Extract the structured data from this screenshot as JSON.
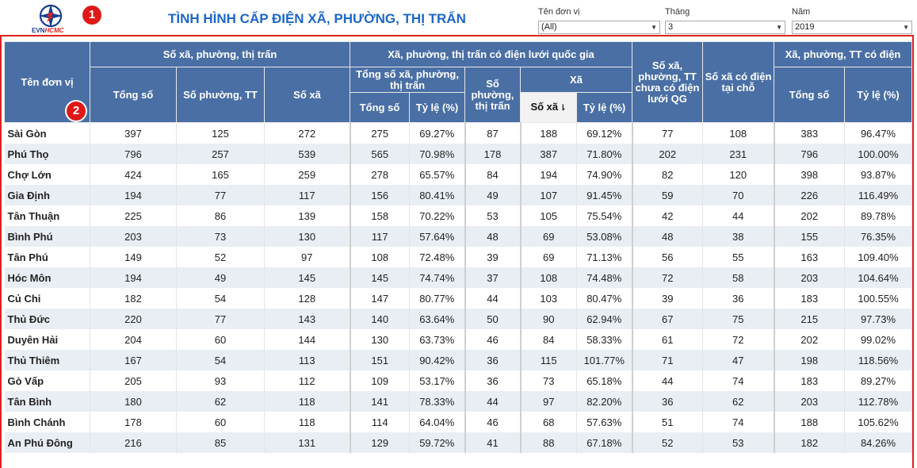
{
  "header": {
    "logo_text_evn": "EVN",
    "logo_text_hcmc": "HCMC",
    "title": "TÌNH HÌNH CẤP ĐIỆN XÃ, PHƯỜNG, THỊ TRẤN",
    "badge1": "1",
    "badge2": "2"
  },
  "filters": [
    {
      "label": "Tên đơn vị",
      "value": "(All)"
    },
    {
      "label": "Tháng",
      "value": "3"
    },
    {
      "label": "Năm",
      "value": "2019"
    }
  ],
  "table": {
    "headers": {
      "unit": "Tên đơn vị",
      "group1": "Số xã, phường, thị trấn",
      "g1_total": "Tổng số",
      "g1_wards": "Số phường, TT",
      "g1_communes": "Số xã",
      "group2": "Xã, phường, thị trấn có điện lưới quốc gia",
      "g2_total_group": "Tổng số xã, phường, thị trấn",
      "g2_total": "Tổng số",
      "g2_rate": "Tỷ lệ (%)",
      "g2_wards": "Số phường, thị trấn",
      "g2_xa": "Xã",
      "g2_xa_count": "Số xã",
      "g2_xa_rate": "Tỷ lệ (%)",
      "no_grid": "Số xã, phường, TT chưa có điện lưới QG",
      "local_power": "Số xã có điện tại chỗ",
      "group3": "Xã, phường, TT có điện",
      "g3_total": "Tổng số",
      "g3_rate": "Tỷ lệ (%)"
    },
    "rows": [
      [
        "Sài Gòn",
        "397",
        "125",
        "272",
        "275",
        "69.27%",
        "87",
        "188",
        "69.12%",
        "77",
        "108",
        "383",
        "96.47%"
      ],
      [
        "Phú Thọ",
        "796",
        "257",
        "539",
        "565",
        "70.98%",
        "178",
        "387",
        "71.80%",
        "202",
        "231",
        "796",
        "100.00%"
      ],
      [
        "Chợ Lớn",
        "424",
        "165",
        "259",
        "278",
        "65.57%",
        "84",
        "194",
        "74.90%",
        "82",
        "120",
        "398",
        "93.87%"
      ],
      [
        "Gia Định",
        "194",
        "77",
        "117",
        "156",
        "80.41%",
        "49",
        "107",
        "91.45%",
        "59",
        "70",
        "226",
        "116.49%"
      ],
      [
        "Tân Thuận",
        "225",
        "86",
        "139",
        "158",
        "70.22%",
        "53",
        "105",
        "75.54%",
        "42",
        "44",
        "202",
        "89.78%"
      ],
      [
        "Bình Phú",
        "203",
        "73",
        "130",
        "117",
        "57.64%",
        "48",
        "69",
        "53.08%",
        "48",
        "38",
        "155",
        "76.35%"
      ],
      [
        "Tân Phú",
        "149",
        "52",
        "97",
        "108",
        "72.48%",
        "39",
        "69",
        "71.13%",
        "56",
        "55",
        "163",
        "109.40%"
      ],
      [
        "Hóc Môn",
        "194",
        "49",
        "145",
        "145",
        "74.74%",
        "37",
        "108",
        "74.48%",
        "72",
        "58",
        "203",
        "104.64%"
      ],
      [
        "Củ Chi",
        "182",
        "54",
        "128",
        "147",
        "80.77%",
        "44",
        "103",
        "80.47%",
        "39",
        "36",
        "183",
        "100.55%"
      ],
      [
        "Thủ Đức",
        "220",
        "77",
        "143",
        "140",
        "63.64%",
        "50",
        "90",
        "62.94%",
        "67",
        "75",
        "215",
        "97.73%"
      ],
      [
        "Duyên Hải",
        "204",
        "60",
        "144",
        "130",
        "63.73%",
        "46",
        "84",
        "58.33%",
        "61",
        "72",
        "202",
        "99.02%"
      ],
      [
        "Thủ Thiêm",
        "167",
        "54",
        "113",
        "151",
        "90.42%",
        "36",
        "115",
        "101.77%",
        "71",
        "47",
        "198",
        "118.56%"
      ],
      [
        "Gò Vấp",
        "205",
        "93",
        "112",
        "109",
        "53.17%",
        "36",
        "73",
        "65.18%",
        "44",
        "74",
        "183",
        "89.27%"
      ],
      [
        "Tân Bình",
        "180",
        "62",
        "118",
        "141",
        "78.33%",
        "44",
        "97",
        "82.20%",
        "36",
        "62",
        "203",
        "112.78%"
      ],
      [
        "Bình Chánh",
        "178",
        "60",
        "118",
        "114",
        "64.04%",
        "46",
        "68",
        "57.63%",
        "51",
        "74",
        "188",
        "105.62%"
      ],
      [
        "An Phú Đông",
        "216",
        "85",
        "131",
        "129",
        "59.72%",
        "41",
        "88",
        "67.18%",
        "52",
        "53",
        "182",
        "84.26%"
      ]
    ]
  },
  "colors": {
    "header_bg": "#4a6fa5",
    "title": "#1d67c9",
    "badge": "#e01818",
    "frame": "#e02020",
    "row_alt": "#e9eef4"
  },
  "icons": {
    "logo": "evn-logo",
    "dropdown": "chevron-down-icon",
    "sort": "sort-descending-icon"
  }
}
